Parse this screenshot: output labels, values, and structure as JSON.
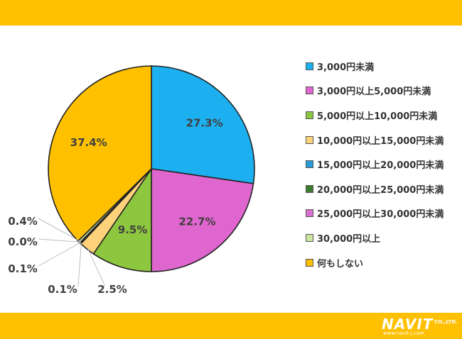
{
  "chart_data": {
    "type": "pie",
    "title": "",
    "categories": [
      "3,000円未満",
      "3,000円以上5,000円未満",
      "5,000円以上10,000円未満",
      "10,000円以上15,000円未満",
      "15,000円以上20,000円未満",
      "20,000円以上25,000円未満",
      "25,000円以上30,000円未満",
      "30,000円以上",
      "何もしない"
    ],
    "values": [
      27.3,
      22.7,
      9.5,
      2.5,
      0.1,
      0.1,
      0.0,
      0.4,
      37.4
    ],
    "labels": [
      "27.3%",
      "22.7%",
      "9.5%",
      "2.5%",
      "0.1%",
      "0.1%",
      "0.0%",
      "0.4%",
      "37.4%"
    ],
    "colors": [
      "#1CB0F0",
      "#E066CF",
      "#8DC63F",
      "#FDD27A",
      "#2A9BD8",
      "#3E7A2E",
      "#D870D0",
      "#C8E6A0",
      "#FFC000"
    ],
    "legend_position": "right"
  },
  "logo": {
    "brand": "NAVIT",
    "company_suffix": "CO.,LTD.",
    "url": "www.navit-j.com"
  },
  "colors": {
    "band": "#FFC000"
  }
}
